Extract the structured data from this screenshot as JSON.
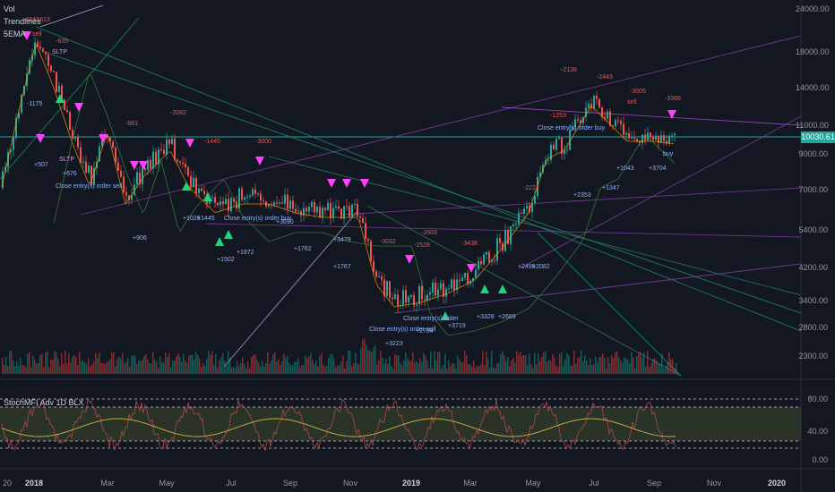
{
  "legend": [
    "Vol",
    "Trendlines",
    "5EMA"
  ],
  "oscillator_title": "StochMFI Adv 1D BLX",
  "price_axis": [
    "24000.00",
    "18000.00",
    "14000.00",
    "11000.00",
    "9000.00",
    "7000.00",
    "5400.00",
    "4200.00",
    "3400.00",
    "2800.00",
    "2300.00"
  ],
  "osc_axis": [
    "80.00",
    "40.00",
    "0.00"
  ],
  "last_price": "10030.61",
  "x_axis": [
    {
      "label": "20",
      "bold": false
    },
    {
      "label": "2018",
      "bold": true
    },
    {
      "label": "Mar",
      "bold": false
    },
    {
      "label": "May",
      "bold": false
    },
    {
      "label": "Jul",
      "bold": false
    },
    {
      "label": "Sep",
      "bold": false
    },
    {
      "label": "Nov",
      "bold": false
    },
    {
      "label": "2019",
      "bold": true
    },
    {
      "label": "Mar",
      "bold": false
    },
    {
      "label": "May",
      "bold": false
    },
    {
      "label": "Jul",
      "bold": false
    },
    {
      "label": "Sep",
      "bold": false
    },
    {
      "label": "Nov",
      "bold": false
    },
    {
      "label": "2020",
      "bold": true
    }
  ],
  "annotations": [
    {
      "text": "-4841",
      "color": "red"
    },
    {
      "text": "-1613",
      "color": "red"
    },
    {
      "text": "sell",
      "color": "red"
    },
    {
      "text": "-635",
      "color": "red"
    },
    {
      "text": "SLTP",
      "color": "pink"
    },
    {
      "text": "-1175",
      "color": "blue"
    },
    {
      "text": "+507",
      "color": "blue"
    },
    {
      "text": "SLTP",
      "color": "pink"
    },
    {
      "text": "+676",
      "color": "blue"
    },
    {
      "text": "Close entry(s) order sell",
      "color": "blue"
    },
    {
      "text": "-881",
      "color": "red"
    },
    {
      "text": "-2082",
      "color": "red"
    },
    {
      "text": "-1445",
      "color": "red"
    },
    {
      "text": "-3000",
      "color": "red"
    },
    {
      "text": "+906",
      "color": "blue"
    },
    {
      "text": "+1026",
      "color": "blue"
    },
    {
      "text": "+1445",
      "color": "blue"
    },
    {
      "text": "+1502",
      "color": "blue"
    },
    {
      "text": "Close entry(s) order buy",
      "color": "blue"
    },
    {
      "text": "+1872",
      "color": "blue"
    },
    {
      "text": "+3690",
      "color": "blue"
    },
    {
      "text": "+1762",
      "color": "blue"
    },
    {
      "text": "+3479",
      "color": "blue"
    },
    {
      "text": "+1767",
      "color": "blue"
    },
    {
      "text": "-3032",
      "color": "red"
    },
    {
      "text": "-2528",
      "color": "red"
    },
    {
      "text": "-2603",
      "color": "red"
    },
    {
      "text": "-3438",
      "color": "red"
    },
    {
      "text": "Close entry(s) order sell",
      "color": "blue"
    },
    {
      "text": "+3223",
      "color": "blue"
    },
    {
      "text": "Close entry(s) order",
      "color": "blue"
    },
    {
      "text": "+2704",
      "color": "blue"
    },
    {
      "text": "+3719",
      "color": "blue"
    },
    {
      "text": "+3328",
      "color": "blue"
    },
    {
      "text": "+2689",
      "color": "blue"
    },
    {
      "text": "-2224",
      "color": "red"
    },
    {
      "text": "+2495",
      "color": "blue"
    },
    {
      "text": "+2082",
      "color": "blue"
    },
    {
      "text": "-2138",
      "color": "red"
    },
    {
      "text": "-2443",
      "color": "red"
    },
    {
      "text": "Close entry(s) order buy",
      "color": "blue"
    },
    {
      "text": "-1253",
      "color": "red"
    },
    {
      "text": "+2353",
      "color": "blue"
    },
    {
      "text": "+1347",
      "color": "blue"
    },
    {
      "text": "+1043",
      "color": "blue"
    },
    {
      "text": "+3704",
      "color": "blue"
    },
    {
      "text": "-3005",
      "color": "red"
    },
    {
      "text": "-3368",
      "color": "red"
    },
    {
      "text": "buy",
      "color": "blue"
    },
    {
      "text": "sell",
      "color": "red"
    }
  ],
  "colors": {
    "bg": "#131722",
    "up": "#26a69a",
    "down": "#ef5350",
    "ema": "#ff9800",
    "trend_green": "#2e7d5b",
    "trend_purple": "#7b3fa0",
    "osc_band": "#3c4a2e"
  }
}
